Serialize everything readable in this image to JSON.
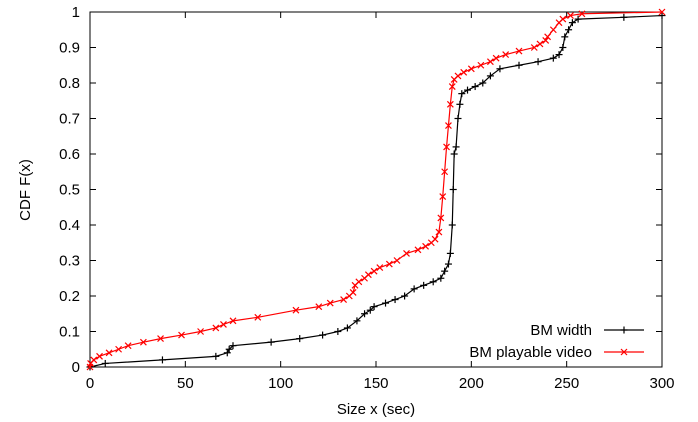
{
  "chart_data": {
    "type": "line",
    "title": "",
    "xlabel": "Size x (sec)",
    "ylabel": "CDF F(x)",
    "xlim": [
      0,
      300
    ],
    "ylim": [
      0,
      1
    ],
    "xticks": [
      0,
      50,
      100,
      150,
      200,
      250,
      300
    ],
    "yticks": [
      0,
      0.1,
      0.2,
      0.3,
      0.4,
      0.5,
      0.6,
      0.7,
      0.8,
      0.9,
      1
    ],
    "grid": false,
    "legend_position": "bottom-right",
    "series": [
      {
        "name": "BM width",
        "color": "#000000",
        "marker": "plus",
        "points": [
          [
            0,
            0
          ],
          [
            8,
            0.01
          ],
          [
            38,
            0.02
          ],
          [
            66,
            0.03
          ],
          [
            72,
            0.04
          ],
          [
            73,
            0.05
          ],
          [
            75,
            0.06
          ],
          [
            95,
            0.07
          ],
          [
            110,
            0.08
          ],
          [
            122,
            0.09
          ],
          [
            130,
            0.1
          ],
          [
            135,
            0.11
          ],
          [
            140,
            0.13
          ],
          [
            144,
            0.15
          ],
          [
            147,
            0.16
          ],
          [
            149,
            0.17
          ],
          [
            155,
            0.18
          ],
          [
            160,
            0.19
          ],
          [
            165,
            0.2
          ],
          [
            170,
            0.22
          ],
          [
            175,
            0.23
          ],
          [
            180,
            0.24
          ],
          [
            184,
            0.25
          ],
          [
            186,
            0.27
          ],
          [
            188,
            0.29
          ],
          [
            189,
            0.32
          ],
          [
            190,
            0.4
          ],
          [
            190.5,
            0.5
          ],
          [
            191,
            0.6
          ],
          [
            192,
            0.62
          ],
          [
            193,
            0.7
          ],
          [
            194,
            0.74
          ],
          [
            195,
            0.77
          ],
          [
            198,
            0.78
          ],
          [
            202,
            0.79
          ],
          [
            206,
            0.8
          ],
          [
            210,
            0.82
          ],
          [
            215,
            0.84
          ],
          [
            225,
            0.85
          ],
          [
            235,
            0.86
          ],
          [
            243,
            0.87
          ],
          [
            246,
            0.88
          ],
          [
            248,
            0.9
          ],
          [
            249,
            0.93
          ],
          [
            251,
            0.95
          ],
          [
            253,
            0.97
          ],
          [
            256,
            0.98
          ],
          [
            280,
            0.985
          ],
          [
            300,
            0.99
          ]
        ]
      },
      {
        "name": "BM playable video",
        "color": "#ff0000",
        "marker": "x",
        "points": [
          [
            0,
            0
          ],
          [
            0.3,
            0.01
          ],
          [
            2,
            0.02
          ],
          [
            5,
            0.03
          ],
          [
            10,
            0.04
          ],
          [
            15,
            0.05
          ],
          [
            20,
            0.06
          ],
          [
            28,
            0.07
          ],
          [
            37,
            0.08
          ],
          [
            48,
            0.09
          ],
          [
            58,
            0.1
          ],
          [
            66,
            0.11
          ],
          [
            70,
            0.12
          ],
          [
            75,
            0.13
          ],
          [
            88,
            0.14
          ],
          [
            108,
            0.16
          ],
          [
            120,
            0.17
          ],
          [
            126,
            0.18
          ],
          [
            133,
            0.19
          ],
          [
            136,
            0.2
          ],
          [
            138,
            0.21
          ],
          [
            139,
            0.23
          ],
          [
            141,
            0.24
          ],
          [
            144,
            0.25
          ],
          [
            146,
            0.26
          ],
          [
            149,
            0.27
          ],
          [
            152,
            0.28
          ],
          [
            157,
            0.29
          ],
          [
            161,
            0.3
          ],
          [
            166,
            0.32
          ],
          [
            172,
            0.33
          ],
          [
            176,
            0.34
          ],
          [
            179,
            0.35
          ],
          [
            181,
            0.36
          ],
          [
            183,
            0.38
          ],
          [
            184,
            0.42
          ],
          [
            185,
            0.48
          ],
          [
            186,
            0.55
          ],
          [
            187,
            0.62
          ],
          [
            188,
            0.68
          ],
          [
            189,
            0.74
          ],
          [
            190,
            0.79
          ],
          [
            191,
            0.81
          ],
          [
            193,
            0.82
          ],
          [
            196,
            0.83
          ],
          [
            200,
            0.84
          ],
          [
            205,
            0.85
          ],
          [
            210,
            0.86
          ],
          [
            213,
            0.87
          ],
          [
            218,
            0.88
          ],
          [
            225,
            0.89
          ],
          [
            233,
            0.9
          ],
          [
            236,
            0.91
          ],
          [
            239,
            0.92
          ],
          [
            240,
            0.93
          ],
          [
            243,
            0.95
          ],
          [
            246,
            0.97
          ],
          [
            248,
            0.98
          ],
          [
            252,
            0.99
          ],
          [
            258,
            0.995
          ],
          [
            300,
            1.0
          ]
        ]
      }
    ]
  }
}
